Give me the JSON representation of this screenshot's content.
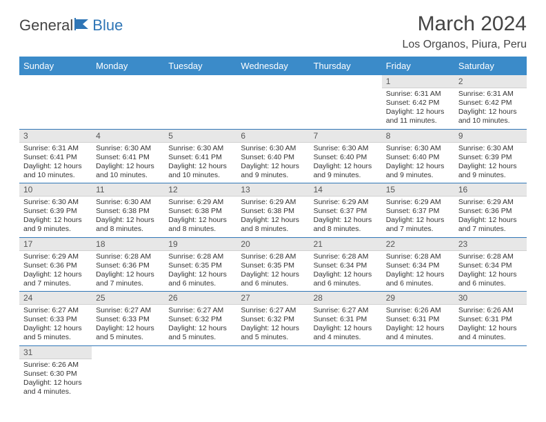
{
  "brand": {
    "general": "General",
    "blue": "Blue"
  },
  "title": "March 2024",
  "subtitle": "Los Organos, Piura, Peru",
  "colors": {
    "header_bg": "#3b8bc9",
    "header_text": "#ffffff",
    "cell_border": "#2e75b6",
    "daynum_bg": "#e7e7e7",
    "text": "#333333"
  },
  "day_names": [
    "Sunday",
    "Monday",
    "Tuesday",
    "Wednesday",
    "Thursday",
    "Friday",
    "Saturday"
  ],
  "weeks": [
    [
      null,
      null,
      null,
      null,
      null,
      {
        "n": "1",
        "sr": "6:31 AM",
        "ss": "6:42 PM",
        "dl": "12 hours and 11 minutes."
      },
      {
        "n": "2",
        "sr": "6:31 AM",
        "ss": "6:42 PM",
        "dl": "12 hours and 10 minutes."
      }
    ],
    [
      {
        "n": "3",
        "sr": "6:31 AM",
        "ss": "6:41 PM",
        "dl": "12 hours and 10 minutes."
      },
      {
        "n": "4",
        "sr": "6:30 AM",
        "ss": "6:41 PM",
        "dl": "12 hours and 10 minutes."
      },
      {
        "n": "5",
        "sr": "6:30 AM",
        "ss": "6:41 PM",
        "dl": "12 hours and 10 minutes."
      },
      {
        "n": "6",
        "sr": "6:30 AM",
        "ss": "6:40 PM",
        "dl": "12 hours and 9 minutes."
      },
      {
        "n": "7",
        "sr": "6:30 AM",
        "ss": "6:40 PM",
        "dl": "12 hours and 9 minutes."
      },
      {
        "n": "8",
        "sr": "6:30 AM",
        "ss": "6:40 PM",
        "dl": "12 hours and 9 minutes."
      },
      {
        "n": "9",
        "sr": "6:30 AM",
        "ss": "6:39 PM",
        "dl": "12 hours and 9 minutes."
      }
    ],
    [
      {
        "n": "10",
        "sr": "6:30 AM",
        "ss": "6:39 PM",
        "dl": "12 hours and 9 minutes."
      },
      {
        "n": "11",
        "sr": "6:30 AM",
        "ss": "6:38 PM",
        "dl": "12 hours and 8 minutes."
      },
      {
        "n": "12",
        "sr": "6:29 AM",
        "ss": "6:38 PM",
        "dl": "12 hours and 8 minutes."
      },
      {
        "n": "13",
        "sr": "6:29 AM",
        "ss": "6:38 PM",
        "dl": "12 hours and 8 minutes."
      },
      {
        "n": "14",
        "sr": "6:29 AM",
        "ss": "6:37 PM",
        "dl": "12 hours and 8 minutes."
      },
      {
        "n": "15",
        "sr": "6:29 AM",
        "ss": "6:37 PM",
        "dl": "12 hours and 7 minutes."
      },
      {
        "n": "16",
        "sr": "6:29 AM",
        "ss": "6:36 PM",
        "dl": "12 hours and 7 minutes."
      }
    ],
    [
      {
        "n": "17",
        "sr": "6:29 AM",
        "ss": "6:36 PM",
        "dl": "12 hours and 7 minutes."
      },
      {
        "n": "18",
        "sr": "6:28 AM",
        "ss": "6:36 PM",
        "dl": "12 hours and 7 minutes."
      },
      {
        "n": "19",
        "sr": "6:28 AM",
        "ss": "6:35 PM",
        "dl": "12 hours and 6 minutes."
      },
      {
        "n": "20",
        "sr": "6:28 AM",
        "ss": "6:35 PM",
        "dl": "12 hours and 6 minutes."
      },
      {
        "n": "21",
        "sr": "6:28 AM",
        "ss": "6:34 PM",
        "dl": "12 hours and 6 minutes."
      },
      {
        "n": "22",
        "sr": "6:28 AM",
        "ss": "6:34 PM",
        "dl": "12 hours and 6 minutes."
      },
      {
        "n": "23",
        "sr": "6:28 AM",
        "ss": "6:34 PM",
        "dl": "12 hours and 6 minutes."
      }
    ],
    [
      {
        "n": "24",
        "sr": "6:27 AM",
        "ss": "6:33 PM",
        "dl": "12 hours and 5 minutes."
      },
      {
        "n": "25",
        "sr": "6:27 AM",
        "ss": "6:33 PM",
        "dl": "12 hours and 5 minutes."
      },
      {
        "n": "26",
        "sr": "6:27 AM",
        "ss": "6:32 PM",
        "dl": "12 hours and 5 minutes."
      },
      {
        "n": "27",
        "sr": "6:27 AM",
        "ss": "6:32 PM",
        "dl": "12 hours and 5 minutes."
      },
      {
        "n": "28",
        "sr": "6:27 AM",
        "ss": "6:31 PM",
        "dl": "12 hours and 4 minutes."
      },
      {
        "n": "29",
        "sr": "6:26 AM",
        "ss": "6:31 PM",
        "dl": "12 hours and 4 minutes."
      },
      {
        "n": "30",
        "sr": "6:26 AM",
        "ss": "6:31 PM",
        "dl": "12 hours and 4 minutes."
      }
    ],
    [
      {
        "n": "31",
        "sr": "6:26 AM",
        "ss": "6:30 PM",
        "dl": "12 hours and 4 minutes."
      },
      null,
      null,
      null,
      null,
      null,
      null
    ]
  ],
  "labels": {
    "sunrise": "Sunrise: ",
    "sunset": "Sunset: ",
    "daylight": "Daylight: "
  }
}
